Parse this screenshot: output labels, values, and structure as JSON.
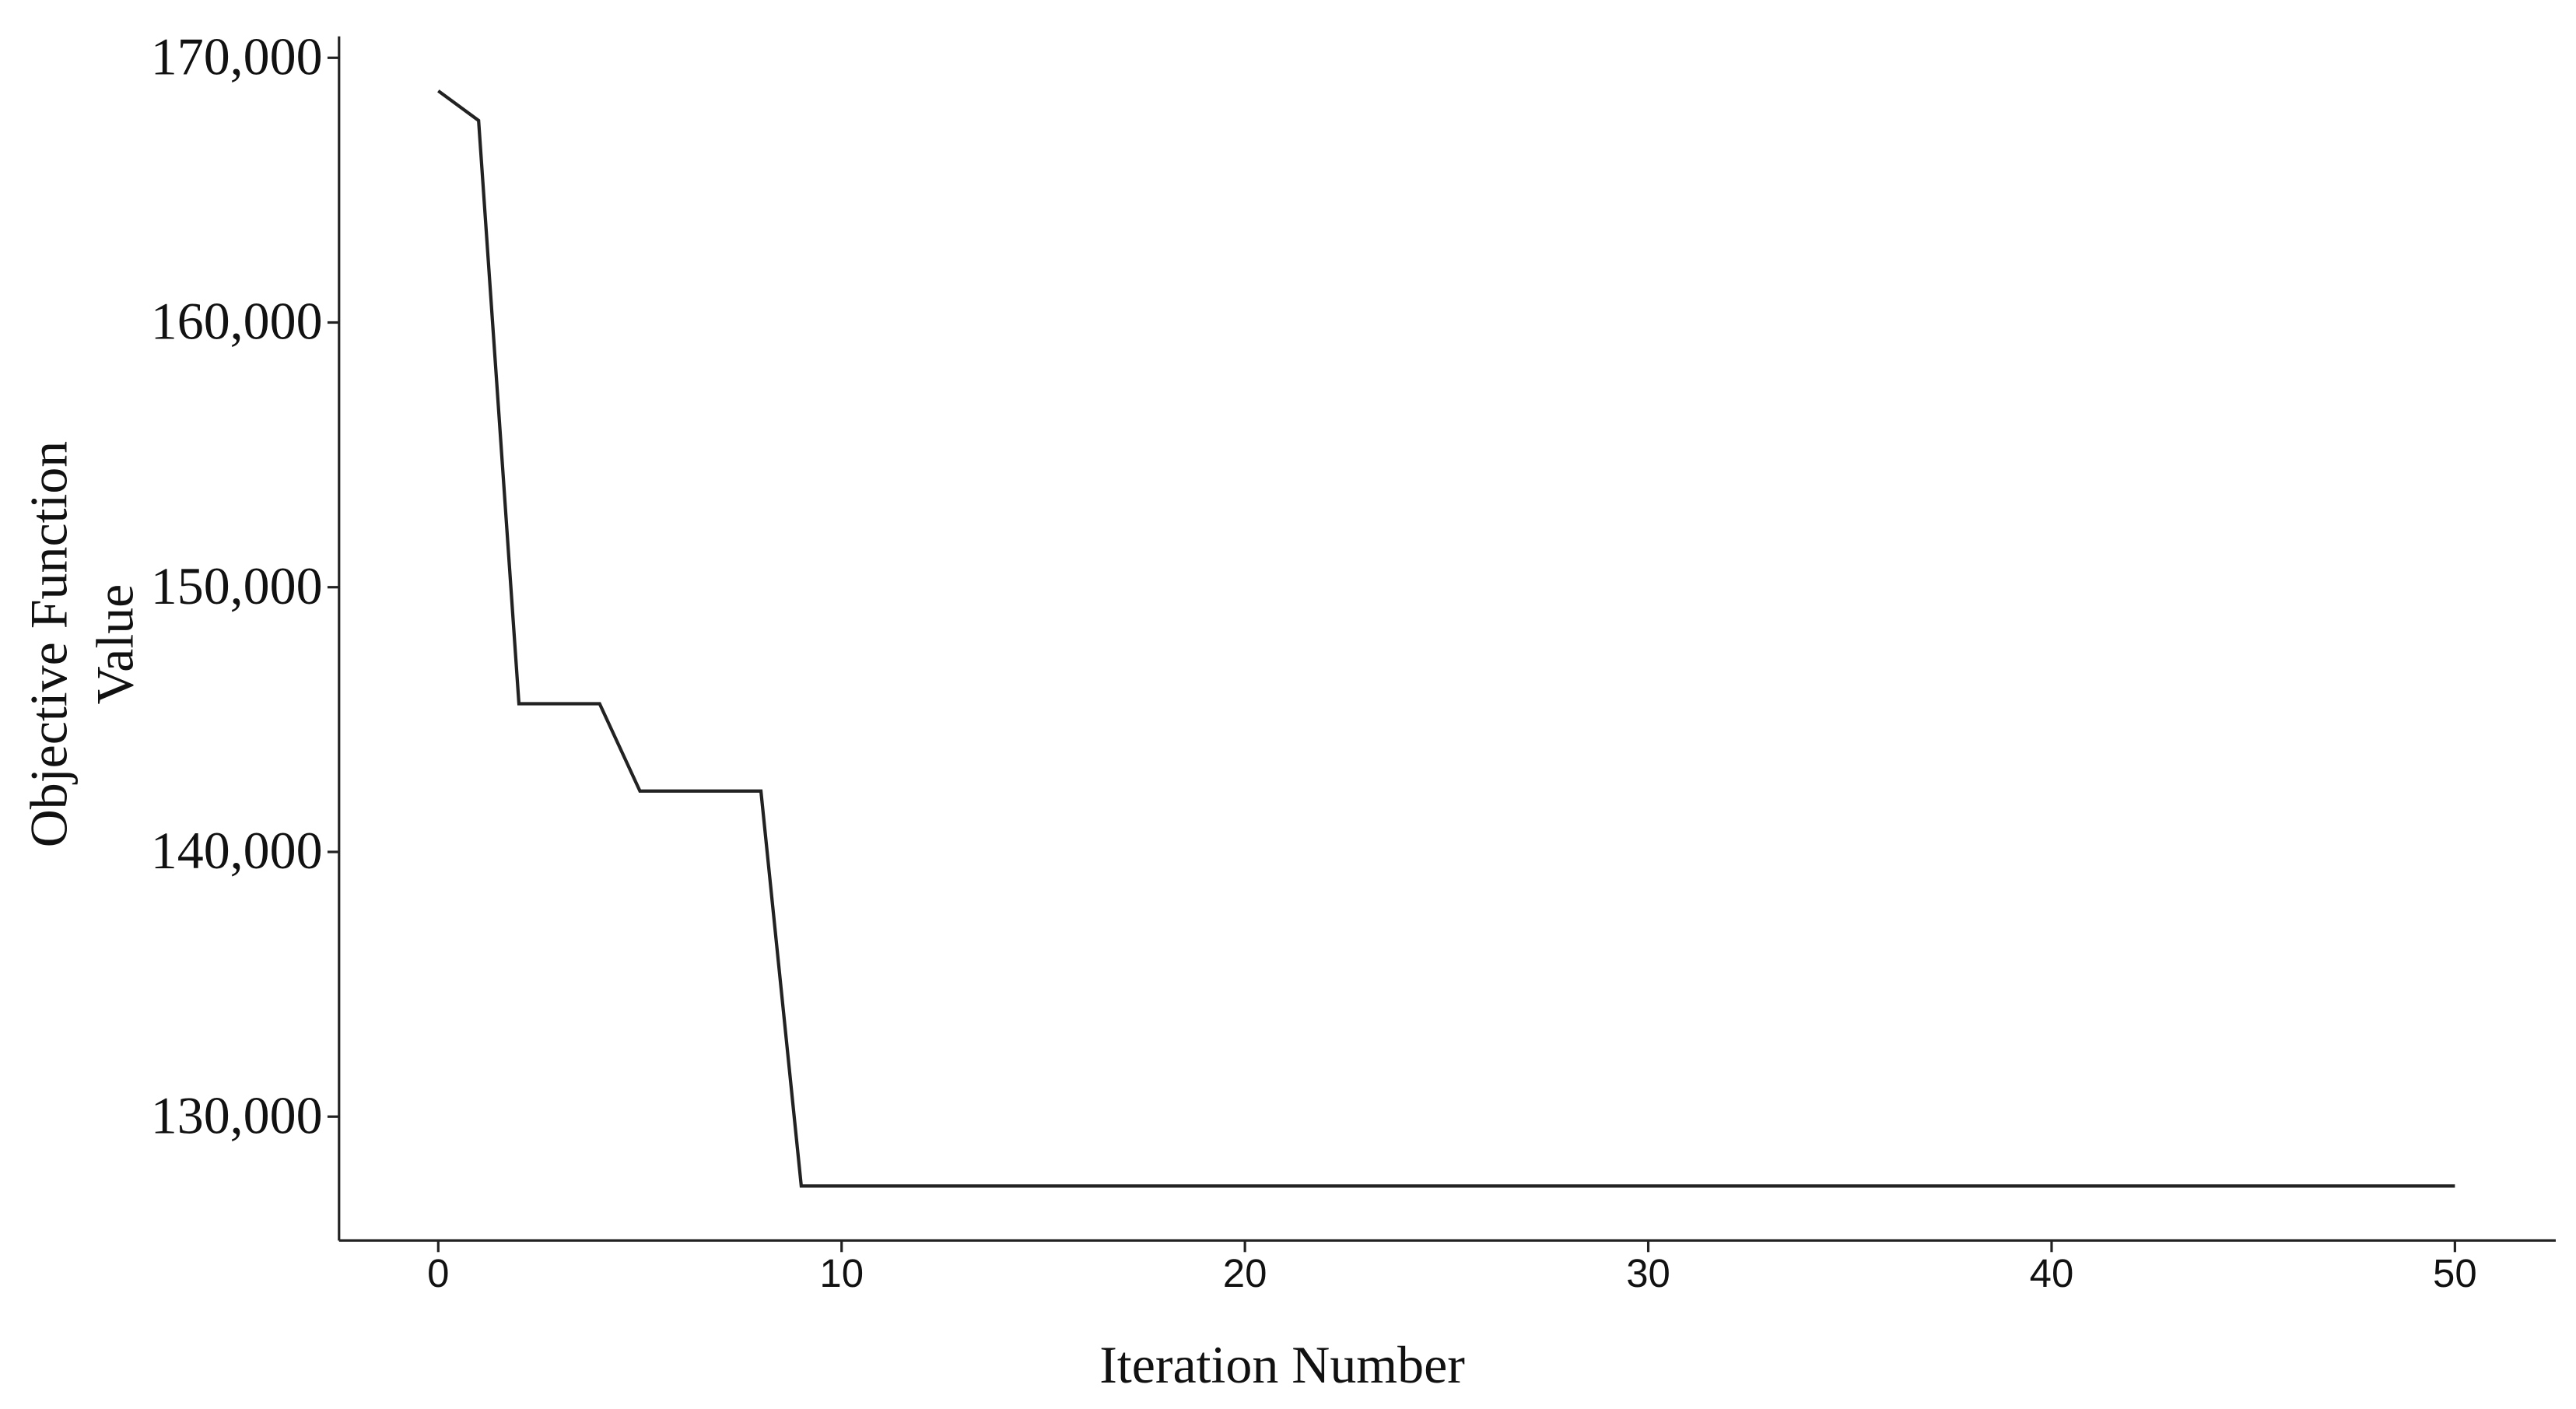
{
  "chart_data": {
    "type": "line",
    "xlabel": "Iteration Number",
    "ylabel": [
      "Objective Function",
      "Value"
    ],
    "x": [
      0,
      1,
      2,
      3,
      4,
      5,
      6,
      7,
      8,
      9,
      10,
      11,
      12,
      13,
      14,
      15,
      16,
      17,
      18,
      19,
      20,
      21,
      22,
      23,
      24,
      25,
      26,
      27,
      28,
      29,
      30,
      31,
      32,
      33,
      34,
      35,
      36,
      37,
      38,
      39,
      40,
      41,
      42,
      43,
      44,
      45,
      46,
      47,
      48,
      49,
      50
    ],
    "series": [
      {
        "color": "#222222",
        "values": [
          168750,
          167630,
          145600,
          145600,
          145600,
          142300,
          142300,
          142300,
          142300,
          127380,
          127380,
          127380,
          127380,
          127380,
          127380,
          127380,
          127380,
          127380,
          127380,
          127380,
          127380,
          127380,
          127380,
          127380,
          127380,
          127380,
          127380,
          127380,
          127380,
          127380,
          127380,
          127380,
          127380,
          127380,
          127380,
          127380,
          127380,
          127380,
          127380,
          127380,
          127380,
          127380,
          127380,
          127380,
          127380,
          127380,
          127380,
          127380,
          127380,
          127380,
          127380
        ]
      }
    ],
    "xlim": [
      -2.46,
      52.5
    ],
    "ylim": [
      125320,
      170810
    ],
    "xticks": [
      0,
      10,
      20,
      30,
      40,
      50
    ],
    "yticks": [
      {
        "value": 130000,
        "label": "130,000"
      },
      {
        "value": 140000,
        "label": "140,000"
      },
      {
        "value": 150000,
        "label": "150,000"
      },
      {
        "value": 160000,
        "label": "160,000"
      },
      {
        "value": 170000,
        "label": "170,000"
      }
    ],
    "grid": false
  }
}
